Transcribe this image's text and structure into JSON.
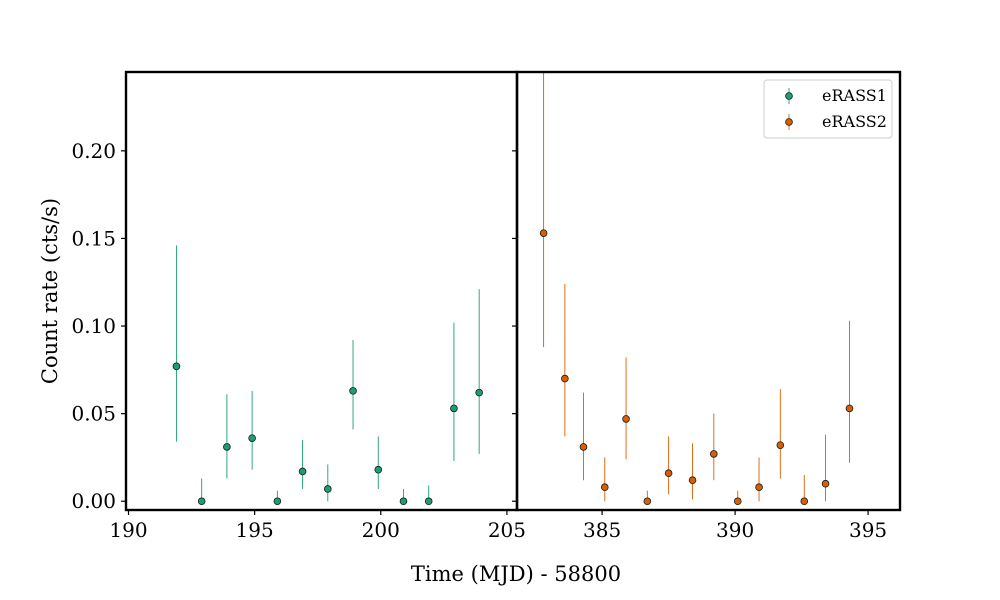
{
  "chart_data": {
    "type": "scatter",
    "xlabel": "Time (MJD) - 58800",
    "ylabel": "Count rate (cts/s)",
    "ylim": [
      -0.005,
      0.245
    ],
    "yticks": [
      0.0,
      0.05,
      0.1,
      0.15,
      0.2
    ],
    "ytick_labels": [
      "0.00",
      "0.05",
      "0.10",
      "0.15",
      "0.20"
    ],
    "legend_position": "top-right",
    "panels": [
      {
        "xlim": [
          189.9,
          205.4
        ],
        "xticks": [
          190,
          195,
          200,
          205
        ],
        "xtick_labels": [
          "190",
          "195",
          "200",
          "205"
        ],
        "series": {
          "name": "eRASS1",
          "color": "#1b9e77",
          "x": [
            191.9,
            192.9,
            193.9,
            194.9,
            195.9,
            196.9,
            197.9,
            198.9,
            199.9,
            200.9,
            201.9,
            202.9,
            203.9
          ],
          "y": [
            0.077,
            0.0,
            0.031,
            0.036,
            0.0,
            0.017,
            0.007,
            0.063,
            0.018,
            0.0,
            0.0,
            0.053,
            0.062
          ],
          "ylow": [
            0.034,
            0.0,
            0.013,
            0.018,
            0.0,
            0.007,
            0.0,
            0.041,
            0.007,
            0.0,
            0.0,
            0.023,
            0.027
          ],
          "yhigh": [
            0.146,
            0.013,
            0.061,
            0.063,
            0.006,
            0.035,
            0.021,
            0.092,
            0.037,
            0.007,
            0.009,
            0.102,
            0.121
          ]
        }
      },
      {
        "xlim": [
          381.8,
          396.2
        ],
        "xticks": [
          385,
          390,
          395
        ],
        "xtick_labels": [
          "385",
          "390",
          "395"
        ],
        "series": {
          "name": "eRASS2",
          "color": "#d95f02",
          "x": [
            382.8,
            383.6,
            384.3,
            385.1,
            385.9,
            386.7,
            387.5,
            388.4,
            389.2,
            390.1,
            390.9,
            391.7,
            392.6,
            393.4,
            394.3
          ],
          "y": [
            0.153,
            0.07,
            0.031,
            0.008,
            0.047,
            0.0,
            0.016,
            0.012,
            0.027,
            0.0,
            0.008,
            0.032,
            0.0,
            0.01,
            0.053
          ],
          "ylow": [
            0.088,
            0.037,
            0.012,
            0.0,
            0.024,
            0.0,
            0.004,
            0.001,
            0.012,
            0.0,
            0.0,
            0.013,
            0.0,
            0.0,
            0.022
          ],
          "yhigh": [
            0.245,
            0.124,
            0.062,
            0.025,
            0.082,
            0.006,
            0.037,
            0.033,
            0.05,
            0.006,
            0.025,
            0.064,
            0.015,
            0.038,
            0.103
          ]
        }
      }
    ]
  }
}
